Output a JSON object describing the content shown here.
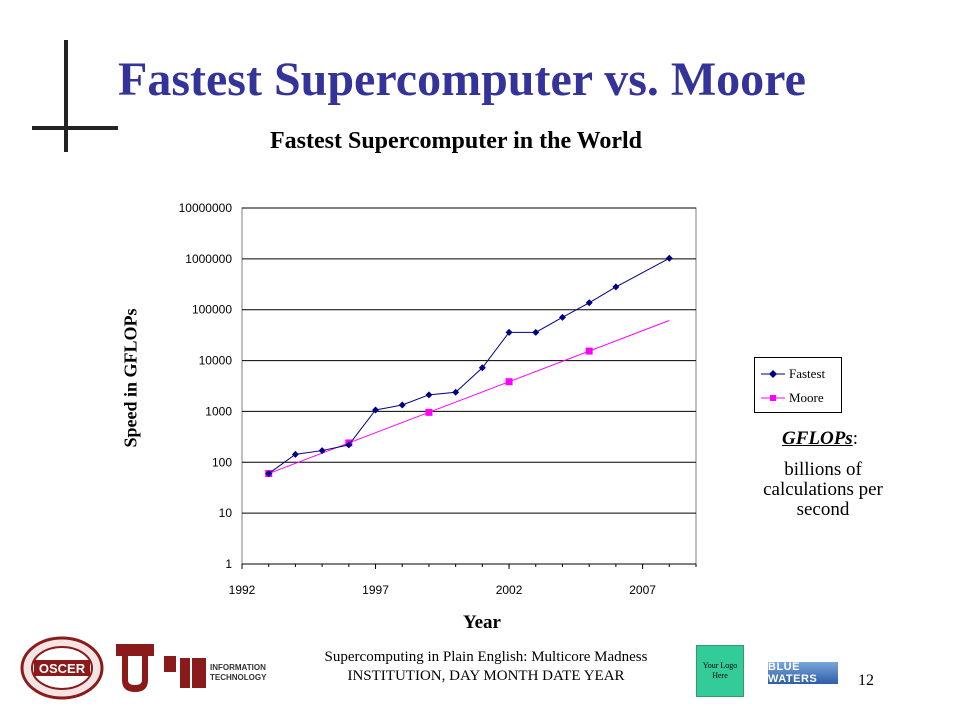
{
  "slide": {
    "title": "Fastest Supercomputer vs. Moore",
    "page_number": "12"
  },
  "annotation": {
    "term": "GFLOPs",
    "colon": ":",
    "definition": "billions of calculations per second"
  },
  "footer": {
    "line1": "Supercomputing in Plain English: Multicore Madness",
    "line2": "INSTITUTION, DAY MONTH DATE YEAR",
    "logo_placeholder": "Your Logo Here",
    "bw_logo_text": "BLUE WATERS",
    "it_logo_text": "INFORMATION TECHNOLOGY"
  },
  "colors": {
    "title": "#333399",
    "fastest": "#000080",
    "moore": "#ff00ff",
    "logo_box": "#33cc99",
    "ou_crimson": "#8b1a1a"
  },
  "chart_data": {
    "type": "line",
    "title": "Fastest Supercomputer in the World",
    "xlabel": "Year",
    "ylabel": "Speed in GFLOPs",
    "xlim": [
      1992,
      2009
    ],
    "ylim": [
      1,
      10000000
    ],
    "yscale": "log",
    "xticks": [
      "1992",
      "1997",
      "2002",
      "2007"
    ],
    "yticks": [
      "1",
      "10",
      "100",
      "1000",
      "10000",
      "100000",
      "1000000",
      "10000000"
    ],
    "grid": "horizontal",
    "legend_position": "right",
    "series": [
      {
        "name": "Fastest",
        "marker": "diamond",
        "x": [
          1993,
          1994,
          1995,
          1996,
          1997,
          1998,
          1999,
          2000,
          2001,
          2002,
          2003,
          2004,
          2005,
          2006,
          2008
        ],
        "y": [
          60,
          143,
          170,
          220,
          1068,
          1338,
          2121,
          2379,
          7226,
          35860,
          35860,
          70720,
          136800,
          280600,
          1026000
        ]
      },
      {
        "name": "Moore",
        "marker": "square",
        "x": [
          1993,
          1996,
          1999,
          2002,
          2005
        ],
        "y": [
          60,
          240,
          960,
          3840,
          15360
        ],
        "trend_x": [
          1993,
          2008
        ],
        "trend_y": [
          60,
          61440
        ]
      }
    ]
  }
}
